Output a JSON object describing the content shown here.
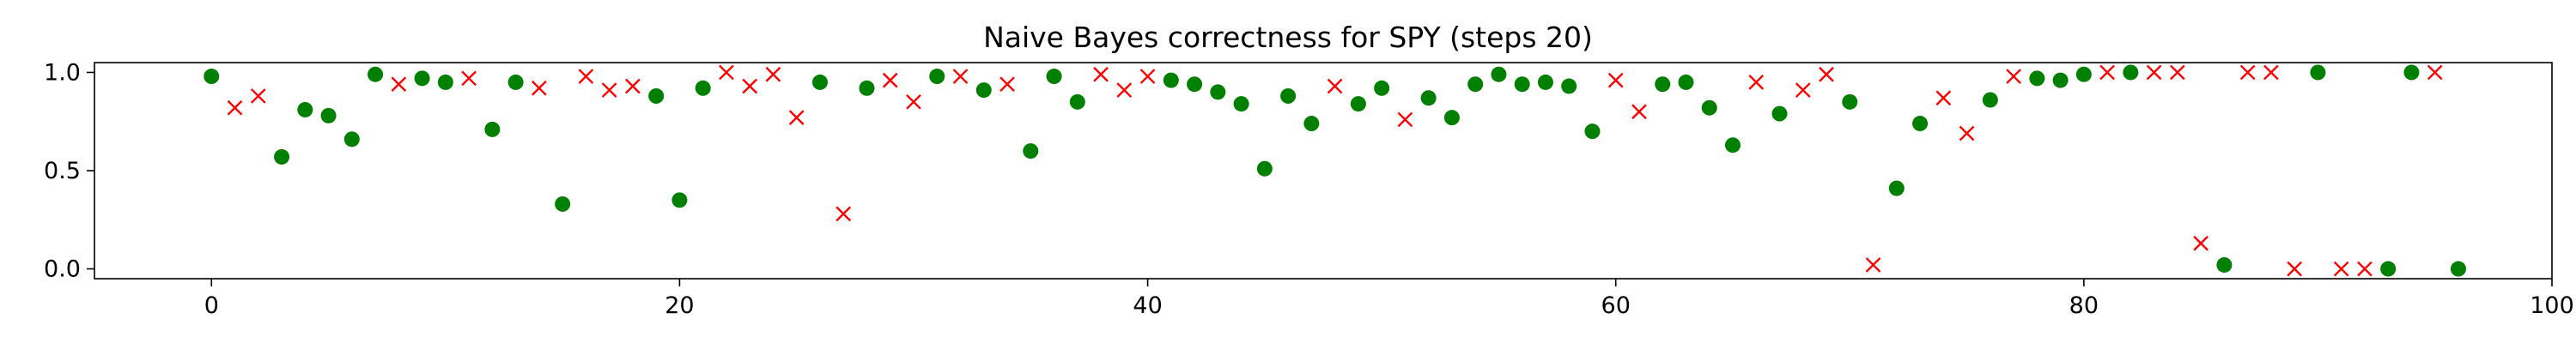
{
  "chart_data": {
    "type": "scatter",
    "title": "Naive Bayes correctness for SPY (steps 20)",
    "xlabel": "",
    "ylabel": "",
    "xlim": [
      -5,
      100
    ],
    "ylim": [
      -0.05,
      1.05
    ],
    "xticks": [
      0,
      20,
      40,
      60,
      80,
      100
    ],
    "yticks": [
      0.0,
      0.5,
      1.0
    ],
    "grid": false,
    "legend": "none",
    "colors": {
      "correct": "#008000",
      "incorrect": "#ff0000"
    },
    "series": [
      {
        "marker": "circle",
        "points": [
          [
            0,
            0.98
          ],
          [
            3,
            0.57
          ],
          [
            4,
            0.81
          ],
          [
            5,
            0.78
          ],
          [
            6,
            0.66
          ],
          [
            7,
            0.99
          ],
          [
            9,
            0.97
          ],
          [
            10,
            0.95
          ],
          [
            12,
            0.71
          ],
          [
            13,
            0.95
          ],
          [
            15,
            0.33
          ],
          [
            19,
            0.88
          ],
          [
            20,
            0.35
          ],
          [
            21,
            0.92
          ],
          [
            26,
            0.95
          ],
          [
            28,
            0.92
          ],
          [
            31,
            0.98
          ],
          [
            33,
            0.91
          ],
          [
            35,
            0.6
          ],
          [
            36,
            0.98
          ],
          [
            37,
            0.85
          ],
          [
            41,
            0.96
          ],
          [
            42,
            0.94
          ],
          [
            43,
            0.9
          ],
          [
            44,
            0.84
          ],
          [
            45,
            0.51
          ],
          [
            46,
            0.88
          ],
          [
            47,
            0.74
          ],
          [
            49,
            0.84
          ],
          [
            50,
            0.92
          ],
          [
            52,
            0.87
          ],
          [
            53,
            0.77
          ],
          [
            54,
            0.94
          ],
          [
            55,
            0.99
          ],
          [
            56,
            0.94
          ],
          [
            57,
            0.95
          ],
          [
            58,
            0.93
          ],
          [
            59,
            0.7
          ],
          [
            62,
            0.94
          ],
          [
            63,
            0.95
          ],
          [
            64,
            0.82
          ],
          [
            65,
            0.63
          ],
          [
            67,
            0.79
          ],
          [
            70,
            0.85
          ],
          [
            72,
            0.41
          ],
          [
            73,
            0.74
          ],
          [
            76,
            0.86
          ],
          [
            78,
            0.97
          ],
          [
            79,
            0.96
          ],
          [
            80,
            0.99
          ],
          [
            82,
            1.0
          ],
          [
            86,
            0.02
          ],
          [
            90,
            1.0
          ],
          [
            93,
            0.0
          ],
          [
            94,
            1.0
          ],
          [
            96,
            0.0
          ]
        ]
      },
      {
        "marker": "x",
        "points": [
          [
            1,
            0.82
          ],
          [
            2,
            0.88
          ],
          [
            8,
            0.94
          ],
          [
            11,
            0.97
          ],
          [
            14,
            0.92
          ],
          [
            16,
            0.98
          ],
          [
            17,
            0.91
          ],
          [
            18,
            0.93
          ],
          [
            22,
            1.0
          ],
          [
            23,
            0.93
          ],
          [
            24,
            0.99
          ],
          [
            25,
            0.77
          ],
          [
            27,
            0.28
          ],
          [
            29,
            0.96
          ],
          [
            30,
            0.85
          ],
          [
            32,
            0.98
          ],
          [
            34,
            0.94
          ],
          [
            38,
            0.99
          ],
          [
            39,
            0.91
          ],
          [
            40,
            0.98
          ],
          [
            48,
            0.93
          ],
          [
            51,
            0.76
          ],
          [
            60,
            0.96
          ],
          [
            61,
            0.8
          ],
          [
            66,
            0.95
          ],
          [
            68,
            0.91
          ],
          [
            69,
            0.99
          ],
          [
            71,
            0.02
          ],
          [
            74,
            0.87
          ],
          [
            75,
            0.69
          ],
          [
            77,
            0.98
          ],
          [
            81,
            1.0
          ],
          [
            83,
            1.0
          ],
          [
            84,
            1.0
          ],
          [
            85,
            0.13
          ],
          [
            87,
            1.0
          ],
          [
            88,
            1.0
          ],
          [
            89,
            0.0
          ],
          [
            91,
            0.0
          ],
          [
            92,
            0.0
          ],
          [
            95,
            1.0
          ]
        ]
      }
    ]
  }
}
